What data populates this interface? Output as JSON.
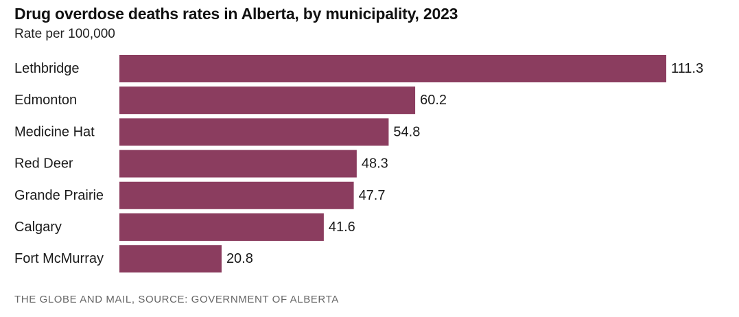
{
  "chart_data": {
    "type": "bar",
    "orientation": "horizontal",
    "title": "Drug overdose deaths rates in Alberta, by municipality, 2023",
    "subtitle": "Rate per 100,000",
    "categories": [
      "Lethbridge",
      "Edmonton",
      "Medicine Hat",
      "Red Deer",
      "Grande Prairie",
      "Calgary",
      "Fort McMurray"
    ],
    "values": [
      111.3,
      60.2,
      54.8,
      48.3,
      47.7,
      41.6,
      20.8
    ],
    "value_labels": [
      "111.3",
      "60.2",
      "54.8",
      "48.3",
      "47.7",
      "41.6",
      "20.8"
    ],
    "xlim": [
      0,
      111.3
    ],
    "grid": false,
    "legend": "none",
    "bar_color": "#8b3d5f"
  },
  "footer": {
    "source": "THE GLOBE AND MAIL, SOURCE: GOVERNMENT OF ALBERTA"
  }
}
